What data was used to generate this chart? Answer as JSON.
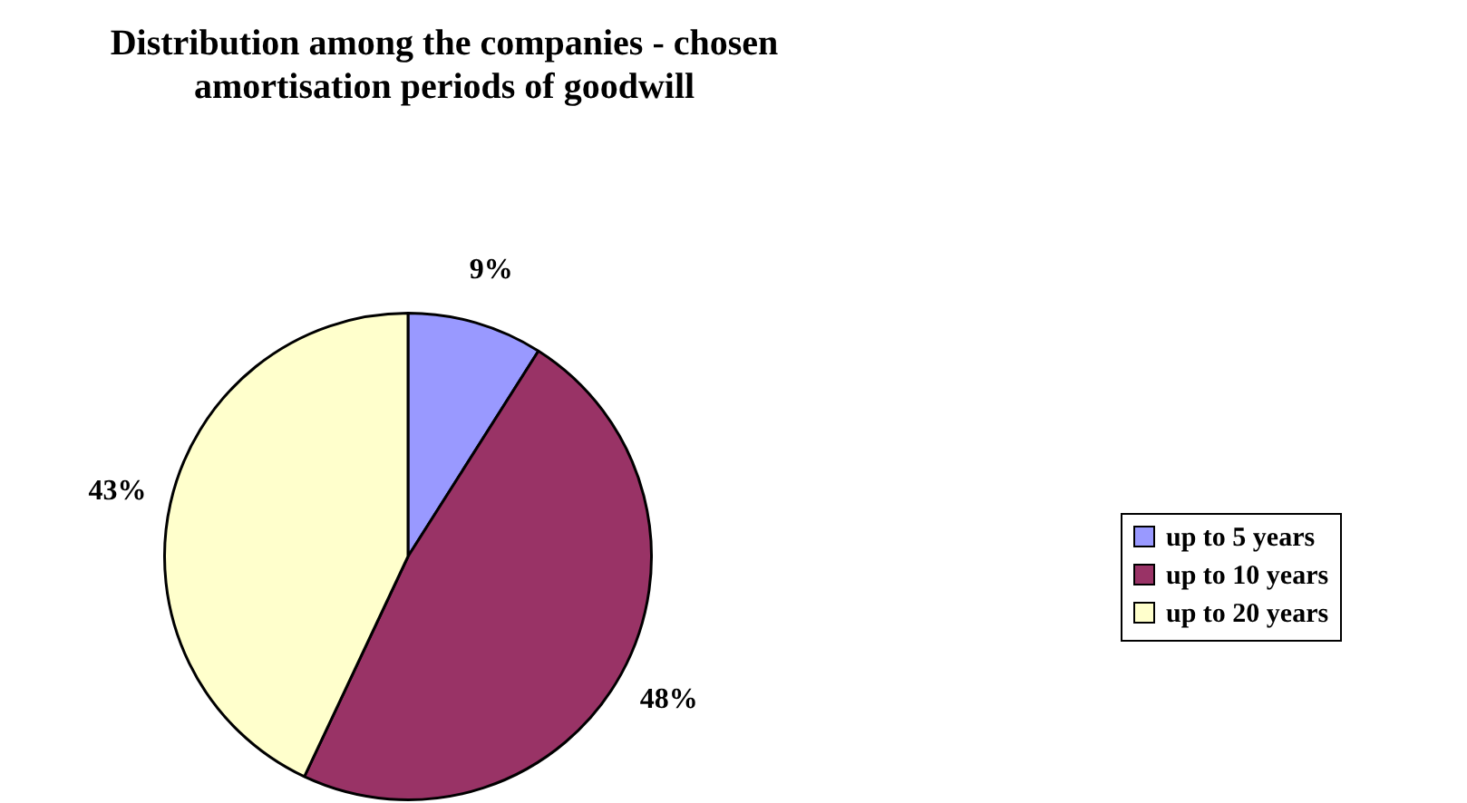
{
  "chart_data": {
    "type": "pie",
    "title": "Distribution among the companies - chosen amortisation periods of goodwill",
    "categories": [
      "up to 5 years",
      "up to 10 years",
      "up to 20 years"
    ],
    "values": [
      9,
      48,
      43
    ],
    "colors": [
      "#9999ff",
      "#993366",
      "#ffffcc"
    ],
    "value_labels": [
      "9%",
      "48%",
      "43%"
    ],
    "legend": "right"
  }
}
